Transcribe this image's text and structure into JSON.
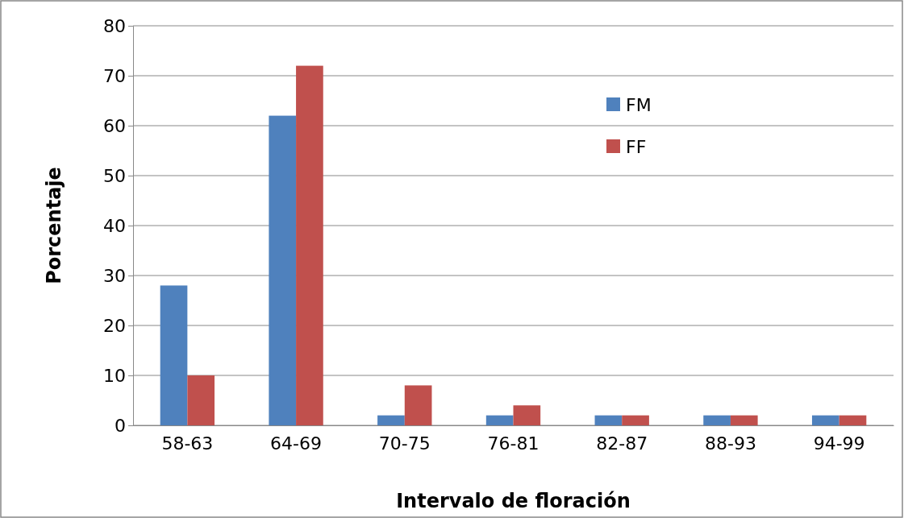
{
  "chart_data": {
    "type": "bar",
    "xlabel": "Intervalo de floración",
    "ylabel": "Porcentaje",
    "categories": [
      "58-63",
      "64-69",
      "70-75",
      "76-81",
      "82-87",
      "88-93",
      "94-99"
    ],
    "series": [
      {
        "name": "FM",
        "color": "#4f81bd",
        "values": [
          28,
          62,
          2,
          2,
          2,
          2,
          2
        ]
      },
      {
        "name": "FF",
        "color": "#c0504d",
        "values": [
          10,
          72,
          8,
          4,
          2,
          2,
          2
        ]
      }
    ],
    "ylim": [
      0,
      80
    ],
    "yticks": [
      0,
      10,
      20,
      30,
      40,
      50,
      60,
      70,
      80
    ],
    "grid": "y",
    "legend": "top right"
  }
}
